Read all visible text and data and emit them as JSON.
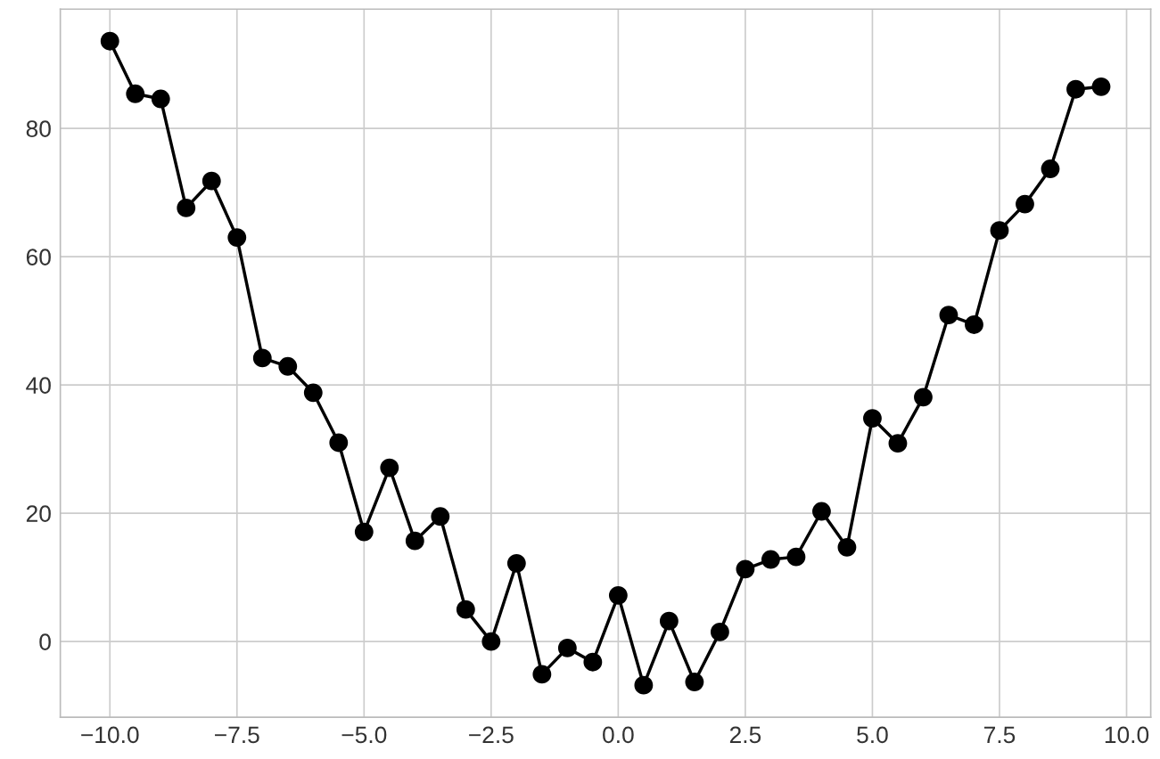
{
  "chart_data": {
    "type": "line",
    "x": [
      -10,
      -9.5,
      -9,
      -8.5,
      -8,
      -7.5,
      -7,
      -6.5,
      -6,
      -5.5,
      -5,
      -4.5,
      -4,
      -3.5,
      -3,
      -2.5,
      -2,
      -1.5,
      -1,
      -0.5,
      0,
      0.5,
      1,
      1.5,
      2,
      2.5,
      3,
      3.5,
      4,
      4.5,
      5,
      5.5,
      6,
      6.5,
      7,
      7.5,
      8,
      8.5,
      9,
      9.5
    ],
    "series": [
      {
        "color": "#000000",
        "values": [
          93.6,
          85.4,
          84.6,
          67.6,
          71.8,
          63.0,
          44.2,
          42.9,
          38.8,
          31.0,
          17.1,
          27.1,
          15.7,
          19.5,
          5.0,
          0.0,
          12.2,
          -5.1,
          -1.0,
          -3.2,
          7.2,
          -6.8,
          3.2,
          -6.3,
          1.5,
          11.3,
          12.8,
          13.2,
          20.3,
          14.7,
          34.8,
          30.9,
          38.1,
          50.9,
          49.4,
          64.1,
          68.2,
          73.7,
          86.1,
          86.5
        ]
      }
    ],
    "xlim": [
      -10.975,
      10.475
    ],
    "ylim": [
      -11.8,
      98.6
    ],
    "xticks": [
      {
        "value": -10,
        "label": "−10.0"
      },
      {
        "value": -7.5,
        "label": "−7.5"
      },
      {
        "value": -5,
        "label": "−5.0"
      },
      {
        "value": -2.5,
        "label": "−2.5"
      },
      {
        "value": 0,
        "label": "0.0"
      },
      {
        "value": 2.5,
        "label": "2.5"
      },
      {
        "value": 5,
        "label": "5.0"
      },
      {
        "value": 7.5,
        "label": "7.5"
      },
      {
        "value": 10,
        "label": "10.0"
      }
    ],
    "yticks": [
      0,
      20,
      40,
      60,
      80
    ],
    "grid": true,
    "marker": "circle",
    "line_style": "solid",
    "legend": false
  }
}
